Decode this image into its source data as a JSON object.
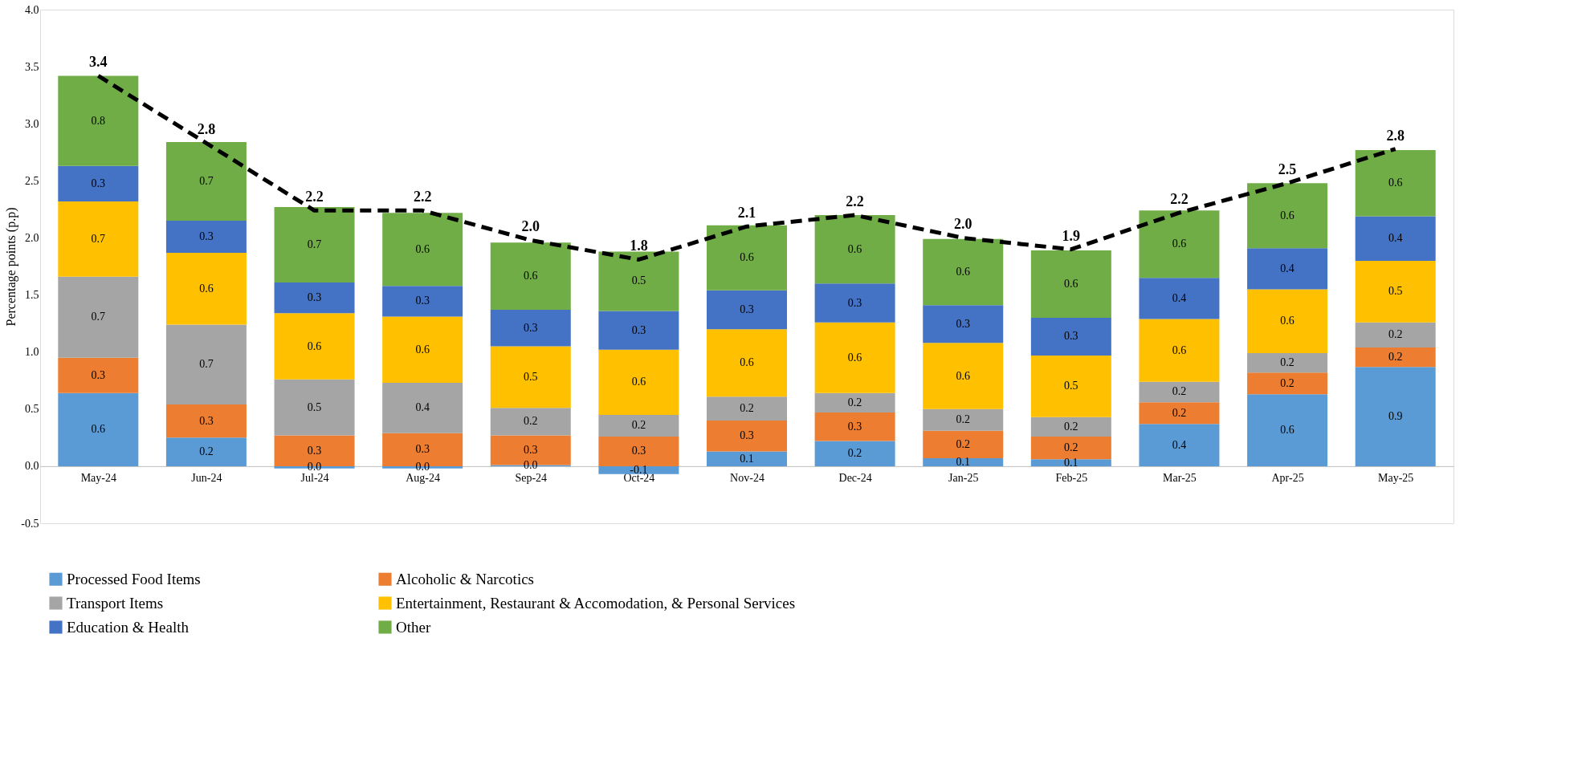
{
  "chart_data": {
    "type": "bar",
    "stacked": true,
    "ylabel": "Percentage points (p.p)",
    "categories": [
      "May-24",
      "Jun-24",
      "Jul-24",
      "Aug-24",
      "Sep-24",
      "Oct-24",
      "Nov-24",
      "Dec-24",
      "Jan-25",
      "Feb-25",
      "Mar-25",
      "Apr-25",
      "May-25"
    ],
    "ylim": [
      -0.5,
      4.0
    ],
    "yticks": [
      {
        "value": -0.5,
        "label": "-0.5"
      },
      {
        "value": 0,
        "label": "0.0"
      },
      {
        "value": 0.5,
        "label": "0.5"
      },
      {
        "value": 1,
        "label": "1.0"
      },
      {
        "value": 1.5,
        "label": "1.5"
      },
      {
        "value": 2,
        "label": "2.0"
      },
      {
        "value": 2.5,
        "label": "2.5"
      },
      {
        "value": 3,
        "label": "3.0"
      },
      {
        "value": 3.5,
        "label": "3.5"
      },
      {
        "value": 4,
        "label": "4.0"
      }
    ],
    "grid": false,
    "legend": "bottom",
    "series": [
      {
        "name": "Processed Food Items",
        "color": "#5b9bd5",
        "values": [
          0.64,
          0.25,
          -0.02,
          -0.02,
          0.01,
          -0.07,
          0.13,
          0.22,
          0.07,
          0.06,
          0.37,
          0.63,
          0.87
        ],
        "value_labels": [
          "0.6",
          "0.2",
          "0.0",
          "0.0",
          "0.0",
          "-0.1",
          "0.1",
          "0.2",
          "0.1",
          "0.1",
          "0.4",
          "0.6",
          "0.9"
        ]
      },
      {
        "name": "Alcoholic & Narcotics",
        "color": "#ed7d31",
        "values": [
          0.31,
          0.29,
          0.27,
          0.29,
          0.26,
          0.26,
          0.27,
          0.25,
          0.24,
          0.2,
          0.19,
          0.19,
          0.17
        ],
        "value_labels": [
          "0.3",
          "0.3",
          "0.3",
          "0.3",
          "0.3",
          "0.3",
          "0.3",
          "0.3",
          "0.2",
          "0.2",
          "0.2",
          "0.2",
          "0.2"
        ]
      },
      {
        "name": "Transport Items",
        "color": "#a5a5a5",
        "values": [
          0.71,
          0.7,
          0.49,
          0.44,
          0.24,
          0.19,
          0.21,
          0.17,
          0.19,
          0.17,
          0.18,
          0.17,
          0.22
        ],
        "value_labels": [
          "0.7",
          "0.7",
          "0.5",
          "0.4",
          "0.2",
          "0.2",
          "0.2",
          "0.2",
          "0.2",
          "0.2",
          "0.2",
          "0.2",
          "0.2"
        ]
      },
      {
        "name": "Entertainment, Restaurant & Accomodation, & Personal Services",
        "color": "#ffc000",
        "values": [
          0.66,
          0.63,
          0.58,
          0.58,
          0.54,
          0.57,
          0.59,
          0.62,
          0.58,
          0.54,
          0.55,
          0.56,
          0.54
        ],
        "value_labels": [
          "0.7",
          "0.6",
          "0.6",
          "0.6",
          "0.5",
          "0.6",
          "0.6",
          "0.6",
          "0.6",
          "0.5",
          "0.6",
          "0.6",
          "0.5"
        ]
      },
      {
        "name": "Education & Health",
        "color": "#4472c4",
        "values": [
          0.31,
          0.28,
          0.27,
          0.27,
          0.32,
          0.34,
          0.34,
          0.34,
          0.33,
          0.33,
          0.36,
          0.36,
          0.39
        ],
        "value_labels": [
          "0.3",
          "0.3",
          "0.3",
          "0.3",
          "0.3",
          "0.3",
          "0.3",
          "0.3",
          "0.3",
          "0.3",
          "0.4",
          "0.4",
          "0.4"
        ]
      },
      {
        "name": "Other",
        "color": "#70ad47",
        "values": [
          0.79,
          0.69,
          0.66,
          0.64,
          0.59,
          0.52,
          0.57,
          0.6,
          0.58,
          0.59,
          0.59,
          0.57,
          0.58
        ],
        "value_labels": [
          "0.8",
          "0.7",
          "0.7",
          "0.6",
          "0.6",
          "0.5",
          "0.6",
          "0.6",
          "0.6",
          "0.6",
          "0.6",
          "0.6",
          "0.6"
        ]
      },
      {
        "type": "line",
        "line_style": "dashed",
        "color": "#000000",
        "values": [
          3.42,
          2.83,
          2.24,
          2.24,
          1.98,
          1.81,
          2.1,
          2.2,
          2.0,
          1.9,
          2.22,
          2.48,
          2.78
        ],
        "value_labels": [
          "3.4",
          "2.8",
          "2.2",
          "2.2",
          "2.0",
          "1.8",
          "2.1",
          "2.2",
          "2.0",
          "1.9",
          "2.2",
          "2.5",
          "2.8"
        ]
      }
    ]
  }
}
